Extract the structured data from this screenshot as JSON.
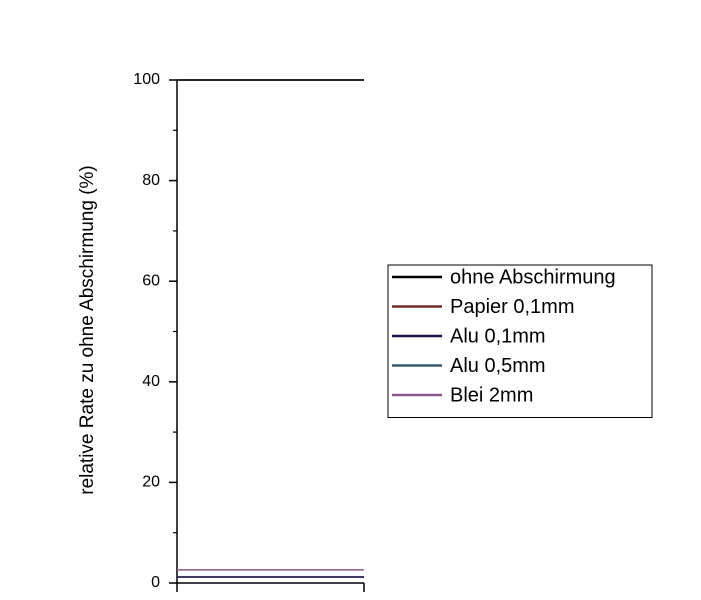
{
  "chart_data": {
    "type": "line",
    "y_label": "relative Rate zu ohne Abschirmung (%)",
    "categories": [
      null,
      null
    ],
    "series": [
      {
        "name": "ohne Abschirmung",
        "color": "#000000",
        "values": [
          100,
          100
        ]
      },
      {
        "name": "Papier 0,1mm",
        "color": "#6b2b2b",
        "values": [
          100,
          100
        ]
      },
      {
        "name": "Alu 0,1mm",
        "color": "#1a1446",
        "values": [
          1.2,
          1.2
        ]
      },
      {
        "name": "Alu 0,5mm",
        "color": "#3d5a6a",
        "values": [
          1.2,
          1.2
        ]
      },
      {
        "name": "Blei 2mm",
        "color": "#8a5a8a",
        "values": [
          2.6,
          2.6
        ]
      }
    ],
    "ylim": [
      0,
      100
    ],
    "yticks": [
      0,
      20,
      40,
      60,
      80,
      100
    ],
    "legend": "right"
  }
}
